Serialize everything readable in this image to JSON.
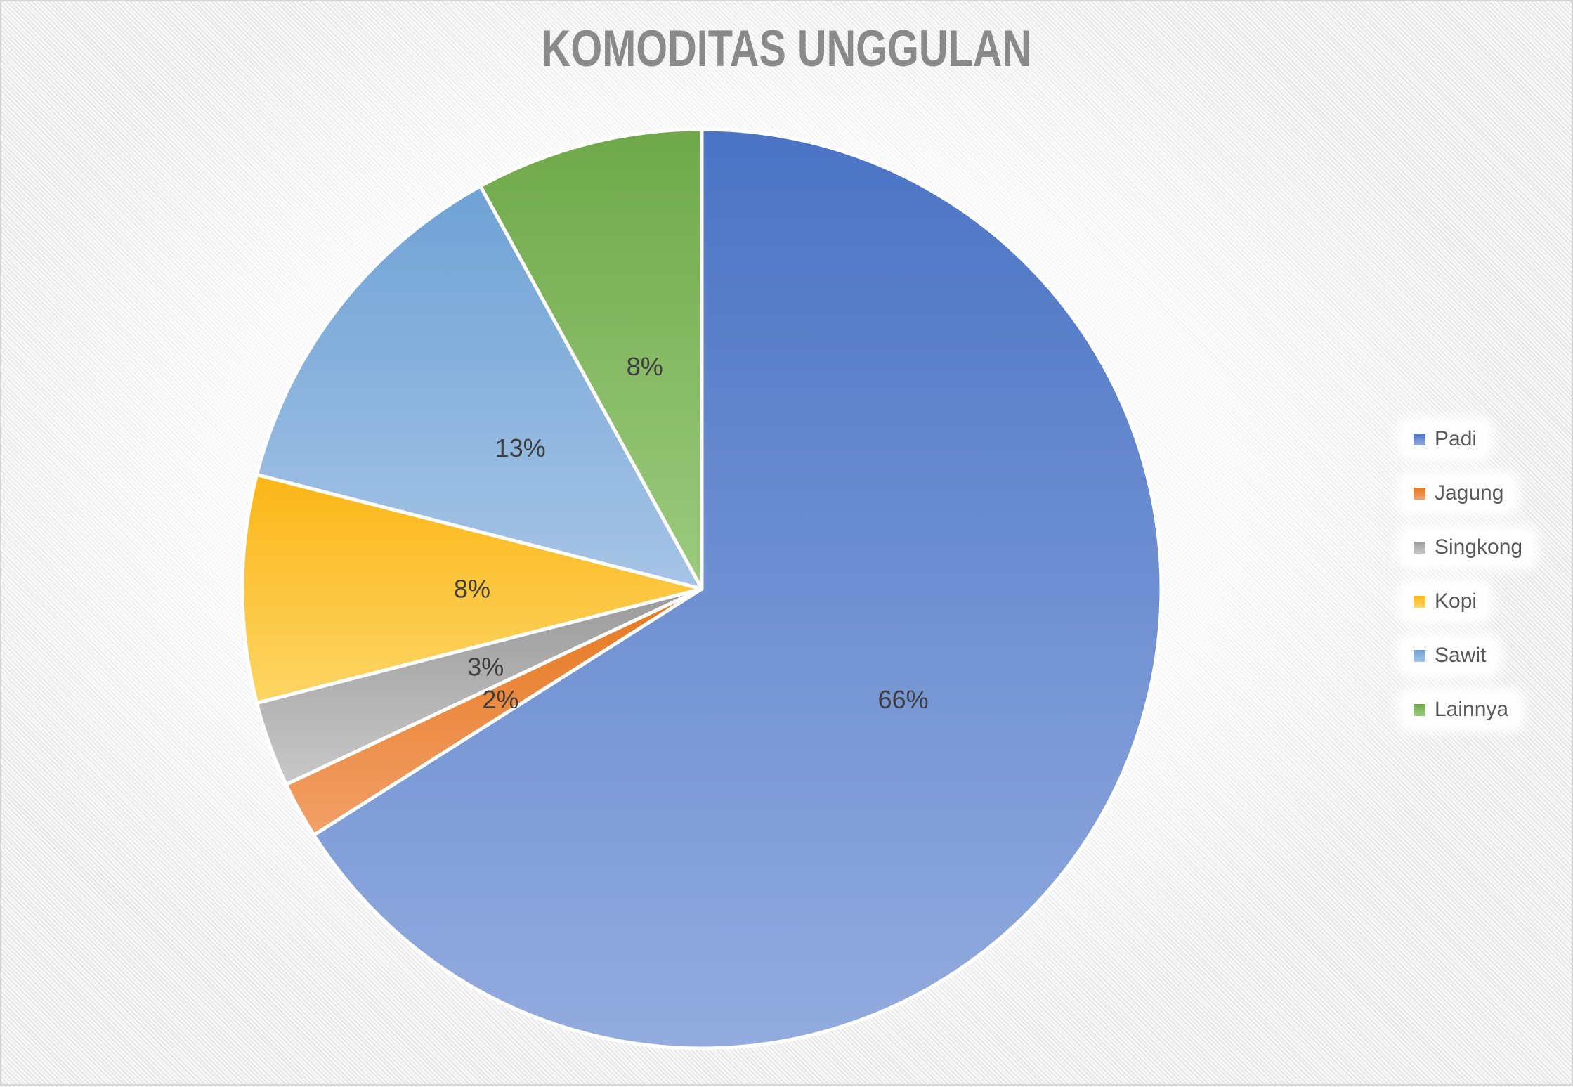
{
  "chart_data": {
    "type": "pie",
    "title": "KOMODITAS UNGGULAN",
    "categories": [
      "Padi",
      "Jagung",
      "Singkong",
      "Kopi",
      "Sawit",
      "Lainnya"
    ],
    "values": [
      66,
      2,
      3,
      8,
      13,
      8
    ],
    "data_labels": [
      "66%",
      "2%",
      "3%",
      "8%",
      "13%",
      "8%"
    ],
    "unit": "%",
    "start_angle_deg": 0,
    "direction": "clockwise",
    "legend_position": "right",
    "slice_border_color": "#FFFFFF",
    "label_color": "#3F3F3F",
    "title_color": "#8A8A8A",
    "legend_text_color": "#595959",
    "slice_colors": [
      {
        "name": "blue",
        "dark": "#4A73C4",
        "light": "#93ACDF"
      },
      {
        "name": "orange",
        "dark": "#E5771E",
        "light": "#F2A068"
      },
      {
        "name": "gray",
        "dark": "#9A9A9A",
        "light": "#C8C8C8"
      },
      {
        "name": "yellow",
        "dark": "#FBB616",
        "light": "#FDD565"
      },
      {
        "name": "light-blue",
        "dark": "#6FA2D5",
        "light": "#A6C4E6"
      },
      {
        "name": "green",
        "dark": "#6FA84A",
        "light": "#9CCB7E"
      }
    ]
  }
}
